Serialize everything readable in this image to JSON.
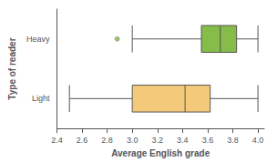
{
  "chart_data": {
    "type": "boxplot",
    "orientation": "horizontal",
    "xlabel": "Average English grade",
    "ylabel": "Type of reader",
    "categories": [
      "Light",
      "Heavy"
    ],
    "boxes": [
      {
        "whisker_low": 2.5,
        "q1": 3.0,
        "median": 3.42,
        "q3": 3.62,
        "whisker_high": 4.0,
        "outliers": [],
        "color": "#f5c97a"
      },
      {
        "whisker_low": 3.0,
        "q1": 3.55,
        "median": 3.7,
        "q3": 3.83,
        "whisker_high": 4.0,
        "outliers": [
          2.88
        ],
        "color": "#85bc4a"
      }
    ],
    "xlim": [
      2.4,
      4.05
    ],
    "xticks": [
      2.4,
      2.6,
      2.8,
      {
        "value": 3,
        "label": "3.0"
      },
      3.2,
      3.4,
      3.6,
      3.8,
      {
        "value": 4,
        "label": "4.0"
      }
    ],
    "grid": false
  }
}
